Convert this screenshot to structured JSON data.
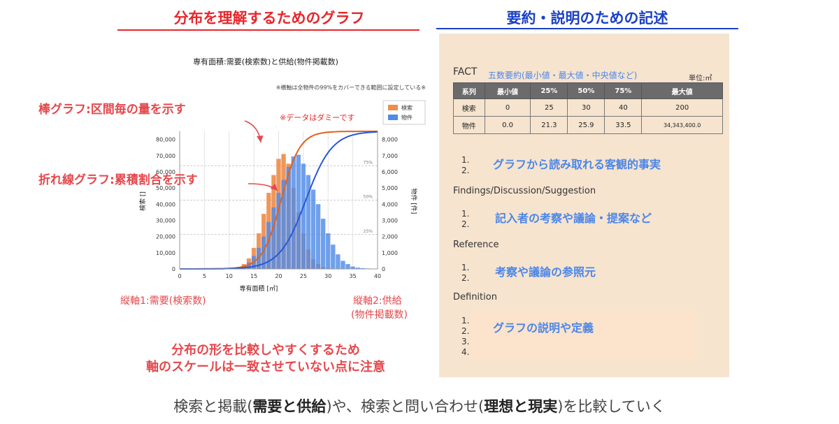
{
  "left_title": "分布を理解するためのグラフ",
  "right_title": "要約・説明のための記述",
  "colors": {
    "red": "#e8262b",
    "blue": "#1a40c8",
    "orange": "#ef8d4b",
    "bluebar": "#4f8be8",
    "panel": "#f6e4cf",
    "accent_blue": "#4b86e8",
    "note_red": "#e5484d"
  },
  "annotations": {
    "bar_note": "棒グラフ:区間毎の量を示す",
    "line_note": "折れ線グラフ:累積割合を示す",
    "dummy_note": "※データはダミーです",
    "axis1_note": "縦軸1:需要(検索数)",
    "axis2_note_line1": "縦軸2:供給",
    "axis2_note_line2": "(物件掲載数)",
    "scale_note_line1": "分布の形を比較しやすくするため",
    "scale_note_line2": "軸のスケールは一致させていない点に注意"
  },
  "chart_data": {
    "type": "bar",
    "title": "専有面積:需要(検索数)と供給(物件掲載数)",
    "subtitle": "※横軸は全物件の99%をカバーできる範囲に設定している※",
    "xlabel": "専有面積 [㎡]",
    "ylabel_left": "検索 []",
    "ylabel_right": "物件 [件]",
    "x": [
      10,
      11,
      12,
      13,
      14,
      15,
      16,
      17,
      18,
      19,
      20,
      21,
      22,
      23,
      24,
      25,
      26,
      27,
      28,
      29,
      30,
      31,
      32,
      33,
      34,
      35,
      36,
      37,
      38,
      39,
      40
    ],
    "xticks": [
      0,
      5,
      10,
      15,
      20,
      25,
      30,
      35,
      40
    ],
    "xticklabels": [
      "0",
      "5",
      "10",
      "15",
      "20",
      "25",
      "30",
      "35",
      "40"
    ],
    "xlim": [
      0,
      40
    ],
    "ylim_left": [
      0,
      85000
    ],
    "yticks_left": [
      0,
      10000,
      20000,
      30000,
      40000,
      50000,
      60000,
      70000,
      80000
    ],
    "yticklabels_left": [
      "0",
      "10,000",
      "20,000",
      "30,000",
      "40,000",
      "50,000",
      "60,000",
      "70,000",
      "80,000"
    ],
    "ylim_right": [
      0,
      8500
    ],
    "yticks_right": [
      0,
      1000,
      2000,
      3000,
      4000,
      5000,
      6000,
      7000,
      8000
    ],
    "yticklabels_right": [
      "0",
      "1,000",
      "2,000",
      "3,000",
      "4,000",
      "5,000",
      "6,000",
      "7,000",
      "8,000"
    ],
    "percent_lines": [
      {
        "label": "25%",
        "value": 0.25
      },
      {
        "label": "50%",
        "value": 0.5
      },
      {
        "label": "75%",
        "value": 0.75
      }
    ],
    "series": [
      {
        "name": "検索",
        "axis": "left",
        "values": [
          200,
          500,
          1200,
          3000,
          6500,
          13000,
          22000,
          34000,
          47000,
          58000,
          68000,
          71000,
          65000,
          50000,
          35000,
          22000,
          12000,
          6000,
          3000,
          1200,
          500,
          200,
          100,
          0,
          0,
          0,
          0,
          0,
          0,
          0,
          0
        ]
      },
      {
        "name": "物件",
        "axis": "right",
        "values": [
          10,
          30,
          80,
          200,
          400,
          800,
          1300,
          2000,
          2900,
          3800,
          4700,
          5500,
          6300,
          6950,
          7050,
          6500,
          5800,
          4900,
          4000,
          3100,
          2200,
          1500,
          900,
          500,
          300,
          150,
          80,
          50,
          30,
          20,
          10
        ]
      }
    ],
    "cumulative": [
      {
        "series": "検索",
        "mu": 20.5,
        "sigma": 3.2
      },
      {
        "series": "物件",
        "mu": 25.5,
        "sigma": 4.5
      }
    ],
    "legend": "top-right"
  },
  "fact": {
    "label": "FACT",
    "note": "五数要約(最小値・最大値・中央値など)",
    "unit": "単位:㎡",
    "headers": [
      "系列",
      "最小値",
      "25%",
      "50%",
      "75%",
      "最大値"
    ],
    "rows": [
      [
        "検索",
        "0",
        "25",
        "30",
        "40",
        "200"
      ],
      [
        "物件",
        "0.0",
        "21.3",
        "25.9",
        "33.5",
        "34,343,400.0"
      ]
    ]
  },
  "sections": {
    "fact_items": [
      "1.",
      "2."
    ],
    "fact_note": "グラフから読み取れる客観的事実",
    "findings_label": "Findings/Discussion/Suggestion",
    "findings_items": [
      "1.",
      "2."
    ],
    "findings_note": "記入者の考察や議論・提案など",
    "reference_label": "Reference",
    "reference_items": [
      "1.",
      "2."
    ],
    "reference_note": "考察や議論の参照元",
    "definition_label": "Definition",
    "definition_items": [
      "1.",
      "2.",
      "3.",
      "4."
    ],
    "definition_note": "グラフの説明や定義"
  },
  "bottom": {
    "part1": "検索と掲載(",
    "bold1": "需要と供給",
    "part2": ")や、検索と問い合わせ(",
    "bold2": "理想と現実",
    "part3": ")を比較していく"
  }
}
